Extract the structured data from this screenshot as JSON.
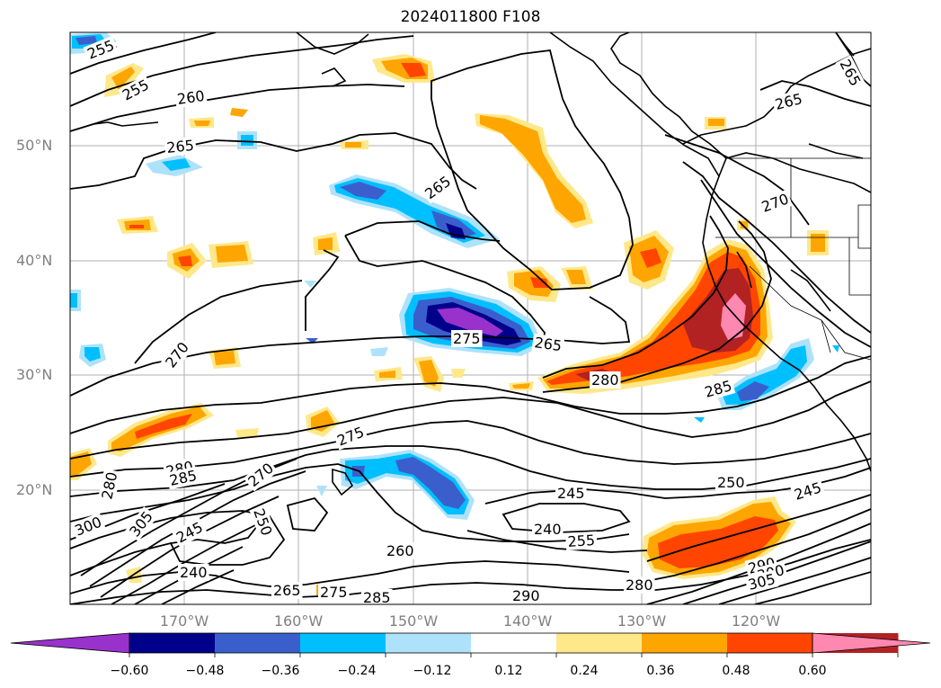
{
  "title": "2024011800 F108",
  "latitude_labels": [
    "50°N",
    "40°N",
    "30°N",
    "20°N"
  ],
  "longitude_labels": [
    "170°W",
    "160°W",
    "150°W",
    "140°W",
    "130°W",
    "120°W"
  ],
  "colorbar": {
    "levels": [
      "−0.60",
      "−0.48",
      "−0.36",
      "−0.24",
      "−0.12",
      "0.12",
      "0.24",
      "0.36",
      "0.48",
      "0.60"
    ],
    "colors": [
      "#9932cc",
      "#00008b",
      "#3a5fcd",
      "#00bfff",
      "#aee2fa",
      "#ffffff",
      "#ffe88a",
      "#ffa500",
      "#ff4500",
      "#b22222",
      "#ff88b0"
    ],
    "extend": "both"
  },
  "contour_labels": [
    {
      "text": "255"
    },
    {
      "text": "255"
    },
    {
      "text": "260"
    },
    {
      "text": "265"
    },
    {
      "text": "265"
    },
    {
      "text": "265"
    },
    {
      "text": "265"
    },
    {
      "text": "270"
    },
    {
      "text": "270"
    },
    {
      "text": "275"
    },
    {
      "text": "265"
    },
    {
      "text": "280"
    },
    {
      "text": "285"
    },
    {
      "text": "275"
    },
    {
      "text": "280"
    },
    {
      "text": "280"
    },
    {
      "text": "285"
    },
    {
      "text": "270"
    },
    {
      "text": "300"
    },
    {
      "text": "305"
    },
    {
      "text": "245"
    },
    {
      "text": "250"
    },
    {
      "text": "240"
    },
    {
      "text": "265"
    },
    {
      "text": "275"
    },
    {
      "text": "285"
    },
    {
      "text": "260"
    },
    {
      "text": "245"
    },
    {
      "text": "240"
    },
    {
      "text": "255"
    },
    {
      "text": "250"
    },
    {
      "text": "245"
    },
    {
      "text": "290"
    },
    {
      "text": "280"
    },
    {
      "text": "290"
    },
    {
      "text": "300"
    },
    {
      "text": "305"
    }
  ]
}
